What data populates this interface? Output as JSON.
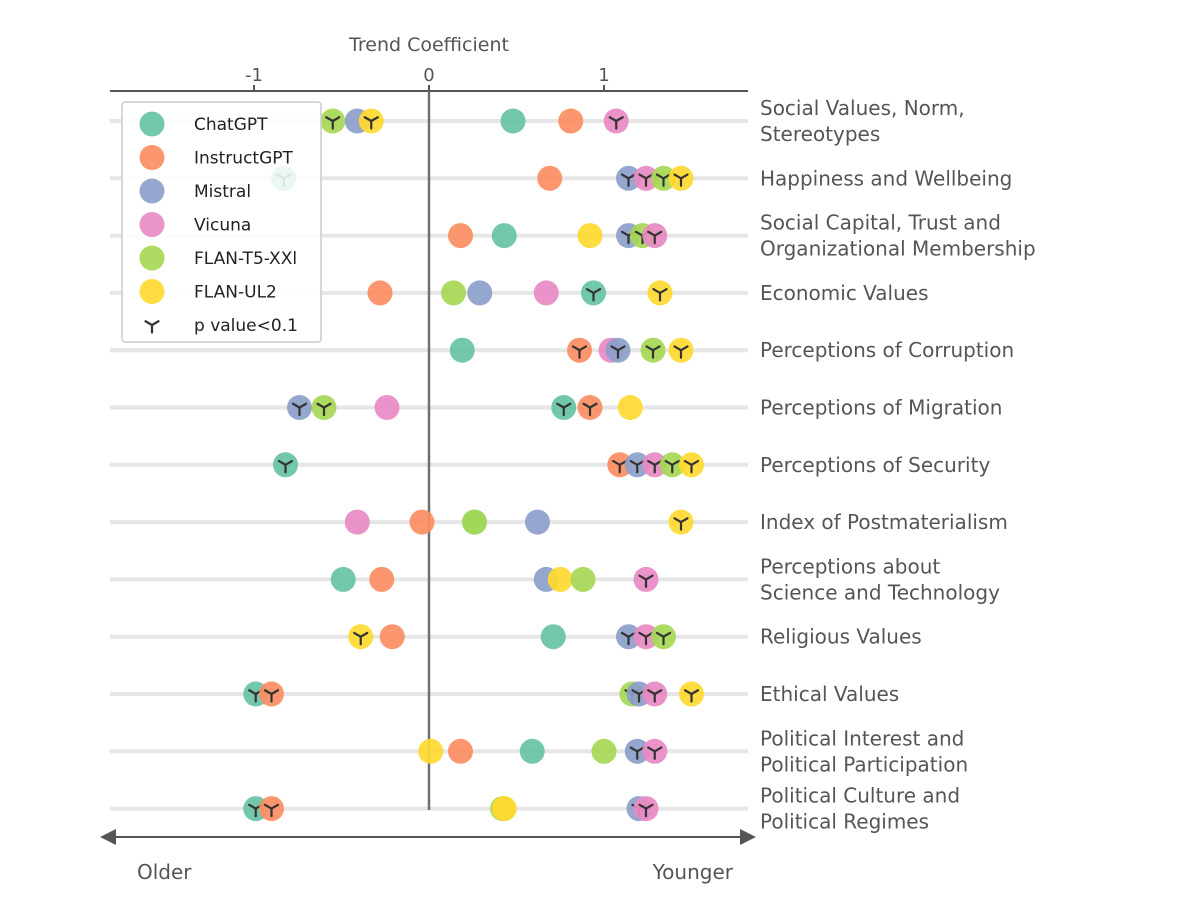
{
  "chart_data": {
    "type": "scatter",
    "xlabel": "Trend Coefficient",
    "x_ticks": [
      {
        "value": -1,
        "label": "-1"
      },
      {
        "value": 0,
        "label": "0"
      },
      {
        "value": 1,
        "label": "1"
      }
    ],
    "xlim": [
      -1.82,
      1.82
    ],
    "reference_line": 0,
    "direction_labels": {
      "left": "Older",
      "right": "Younger"
    },
    "legend_position": "top-left",
    "significance_legend": "p value<0.1",
    "series": [
      {
        "name": "ChatGPT",
        "color": "#66c2a5"
      },
      {
        "name": "InstructGPT",
        "color": "#fc8d62"
      },
      {
        "name": "Mistral",
        "color": "#8da0cb"
      },
      {
        "name": "Vicuna",
        "color": "#e78ac3"
      },
      {
        "name": "FLAN-T5-XXl",
        "color": "#a6d854"
      },
      {
        "name": "FLAN-UL2",
        "color": "#ffd92f"
      }
    ],
    "categories": [
      {
        "label": [
          "Social Values, Norm,",
          "Stereotypes"
        ],
        "points": [
          {
            "series": "ChatGPT",
            "x": 0.48,
            "sig": false
          },
          {
            "series": "InstructGPT",
            "x": 0.81,
            "sig": false
          },
          {
            "series": "Mistral",
            "x": -0.41,
            "sig": false
          },
          {
            "series": "Vicuna",
            "x": 1.07,
            "sig": true
          },
          {
            "series": "FLAN-T5-XXl",
            "x": -0.55,
            "sig": true
          },
          {
            "series": "FLAN-UL2",
            "x": -0.33,
            "sig": true
          }
        ]
      },
      {
        "label": [
          "Happiness and Wellbeing"
        ],
        "points": [
          {
            "series": "ChatGPT",
            "x": -0.83,
            "sig": true
          },
          {
            "series": "InstructGPT",
            "x": 0.69,
            "sig": false
          },
          {
            "series": "Mistral",
            "x": 1.14,
            "sig": true
          },
          {
            "series": "Vicuna",
            "x": 1.24,
            "sig": true
          },
          {
            "series": "FLAN-T5-XXl",
            "x": 1.34,
            "sig": true
          },
          {
            "series": "FLAN-UL2",
            "x": 1.44,
            "sig": true
          }
        ]
      },
      {
        "label": [
          "Social Capital, Trust and",
          "Organizational Membership"
        ],
        "points": [
          {
            "series": "ChatGPT",
            "x": 0.43,
            "sig": false
          },
          {
            "series": "InstructGPT",
            "x": 0.18,
            "sig": false
          },
          {
            "series": "Mistral",
            "x": 1.14,
            "sig": true
          },
          {
            "series": "Vicuna",
            "x": 1.29,
            "sig": true
          },
          {
            "series": "FLAN-T5-XXl",
            "x": 1.22,
            "sig": true
          },
          {
            "series": "FLAN-UL2",
            "x": 0.92,
            "sig": false
          }
        ]
      },
      {
        "label": [
          "Economic Values"
        ],
        "points": [
          {
            "series": "ChatGPT",
            "x": 0.94,
            "sig": true
          },
          {
            "series": "InstructGPT",
            "x": -0.28,
            "sig": false
          },
          {
            "series": "Mistral",
            "x": 0.29,
            "sig": false
          },
          {
            "series": "Vicuna",
            "x": 0.67,
            "sig": false
          },
          {
            "series": "FLAN-T5-XXl",
            "x": 0.14,
            "sig": false
          },
          {
            "series": "FLAN-UL2",
            "x": 1.32,
            "sig": true
          }
        ]
      },
      {
        "label": [
          "Perceptions of Corruption"
        ],
        "points": [
          {
            "series": "ChatGPT",
            "x": 0.19,
            "sig": false
          },
          {
            "series": "InstructGPT",
            "x": 0.86,
            "sig": true
          },
          {
            "series": "Mistral",
            "x": 1.08,
            "sig": true
          },
          {
            "series": "Vicuna",
            "x": 1.04,
            "sig": false
          },
          {
            "series": "FLAN-T5-XXl",
            "x": 1.28,
            "sig": true
          },
          {
            "series": "FLAN-UL2",
            "x": 1.44,
            "sig": true
          }
        ]
      },
      {
        "label": [
          "Perceptions of Migration"
        ],
        "points": [
          {
            "series": "ChatGPT",
            "x": 0.77,
            "sig": true
          },
          {
            "series": "InstructGPT",
            "x": 0.92,
            "sig": true
          },
          {
            "series": "Mistral",
            "x": -0.74,
            "sig": true
          },
          {
            "series": "Vicuna",
            "x": -0.24,
            "sig": false
          },
          {
            "series": "FLAN-T5-XXl",
            "x": -0.6,
            "sig": true
          },
          {
            "series": "FLAN-UL2",
            "x": 1.15,
            "sig": false
          }
        ]
      },
      {
        "label": [
          "Perceptions of Security"
        ],
        "points": [
          {
            "series": "ChatGPT",
            "x": -0.82,
            "sig": true
          },
          {
            "series": "InstructGPT",
            "x": 1.09,
            "sig": true
          },
          {
            "series": "Mistral",
            "x": 1.19,
            "sig": true
          },
          {
            "series": "Vicuna",
            "x": 1.29,
            "sig": true
          },
          {
            "series": "FLAN-T5-XXl",
            "x": 1.39,
            "sig": true
          },
          {
            "series": "FLAN-UL2",
            "x": 1.5,
            "sig": true
          }
        ]
      },
      {
        "label": [
          "Index of Postmaterialism"
        ],
        "points": [
          {
            "series": "ChatGPT",
            "x": 0.26,
            "sig": false
          },
          {
            "series": "InstructGPT",
            "x": -0.04,
            "sig": false
          },
          {
            "series": "Mistral",
            "x": 0.62,
            "sig": false
          },
          {
            "series": "Vicuna",
            "x": -0.41,
            "sig": false
          },
          {
            "series": "FLAN-T5-XXl",
            "x": 0.26,
            "sig": false
          },
          {
            "series": "FLAN-UL2",
            "x": 1.44,
            "sig": true
          }
        ]
      },
      {
        "label": [
          "Perceptions about",
          "Science and Technology"
        ],
        "points": [
          {
            "series": "ChatGPT",
            "x": -0.49,
            "sig": false
          },
          {
            "series": "InstructGPT",
            "x": -0.27,
            "sig": false
          },
          {
            "series": "Mistral",
            "x": 0.67,
            "sig": false
          },
          {
            "series": "Vicuna",
            "x": 1.24,
            "sig": true
          },
          {
            "series": "FLAN-T5-XXl",
            "x": 0.88,
            "sig": false
          },
          {
            "series": "FLAN-UL2",
            "x": 0.75,
            "sig": false
          }
        ]
      },
      {
        "label": [
          "Religious Values"
        ],
        "points": [
          {
            "series": "ChatGPT",
            "x": 0.71,
            "sig": false
          },
          {
            "series": "InstructGPT",
            "x": -0.21,
            "sig": false
          },
          {
            "series": "Mistral",
            "x": 1.14,
            "sig": true
          },
          {
            "series": "Vicuna",
            "x": 1.24,
            "sig": true
          },
          {
            "series": "FLAN-T5-XXl",
            "x": 1.34,
            "sig": true
          },
          {
            "series": "FLAN-UL2",
            "x": -0.39,
            "sig": true
          }
        ]
      },
      {
        "label": [
          "Ethical Values"
        ],
        "points": [
          {
            "series": "ChatGPT",
            "x": -0.99,
            "sig": true
          },
          {
            "series": "InstructGPT",
            "x": -0.9,
            "sig": true
          },
          {
            "series": "Mistral",
            "x": 1.2,
            "sig": true
          },
          {
            "series": "Vicuna",
            "x": 1.29,
            "sig": true
          },
          {
            "series": "FLAN-T5-XXl",
            "x": 1.16,
            "sig": true
          },
          {
            "series": "FLAN-UL2",
            "x": 1.5,
            "sig": true
          }
        ]
      },
      {
        "label": [
          "Political Interest and",
          "Political Participation"
        ],
        "points": [
          {
            "series": "ChatGPT",
            "x": 0.59,
            "sig": false
          },
          {
            "series": "InstructGPT",
            "x": 0.18,
            "sig": false
          },
          {
            "series": "Mistral",
            "x": 1.19,
            "sig": true
          },
          {
            "series": "Vicuna",
            "x": 1.29,
            "sig": true
          },
          {
            "series": "FLAN-T5-XXl",
            "x": 1.0,
            "sig": false
          },
          {
            "series": "FLAN-UL2",
            "x": 0.01,
            "sig": false
          }
        ]
      },
      {
        "label": [
          "Political Culture and",
          "Political Regimes"
        ],
        "points": [
          {
            "series": "ChatGPT",
            "x": -0.99,
            "sig": true
          },
          {
            "series": "InstructGPT",
            "x": -0.9,
            "sig": true
          },
          {
            "series": "Mistral",
            "x": 1.2,
            "sig": true
          },
          {
            "series": "Vicuna",
            "x": 1.24,
            "sig": true
          },
          {
            "series": "FLAN-T5-XXl",
            "x": 0.42,
            "sig": false
          },
          {
            "series": "FLAN-UL2",
            "x": 0.43,
            "sig": false
          }
        ]
      }
    ]
  }
}
